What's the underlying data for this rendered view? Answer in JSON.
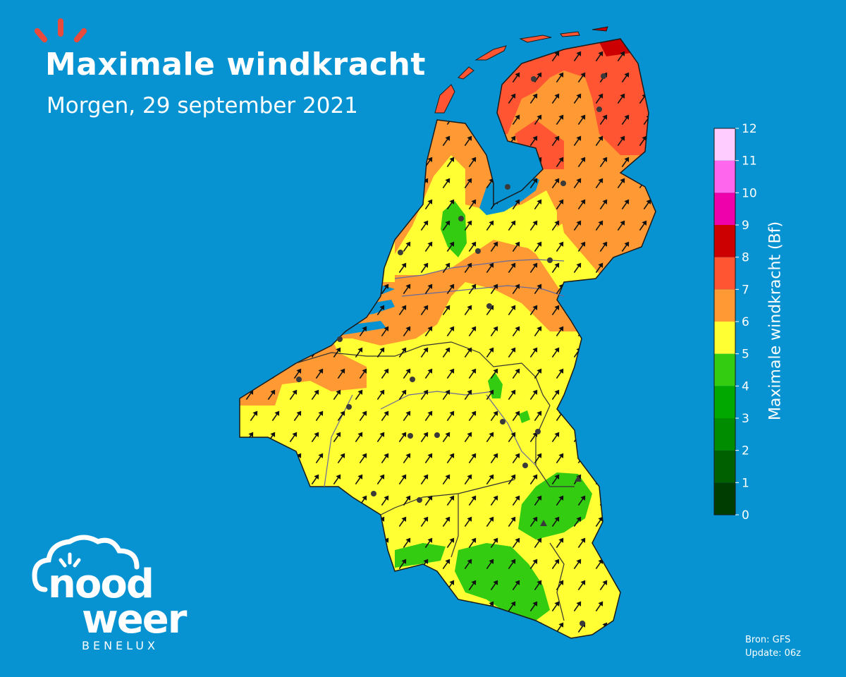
{
  "header": {
    "title": "Maximale windkracht",
    "subtitle": "Morgen, 29 september 2021"
  },
  "source": {
    "line1": "Bron: GFS",
    "line2": "Update: 06z"
  },
  "logo": {
    "word1": "nood",
    "word2": "weer",
    "region": "BENELUX"
  },
  "colorbar": {
    "label": "Maximale windkracht (Bf)",
    "ticks": [
      "0",
      "1",
      "2",
      "3",
      "4",
      "5",
      "6",
      "7",
      "8",
      "9",
      "10",
      "11",
      "12"
    ],
    "colors": [
      "#003d00",
      "#006000",
      "#008c00",
      "#00a800",
      "#33cc11",
      "#ffff33",
      "#ff9933",
      "#ff5533",
      "#cc0000",
      "#ee00aa",
      "#ff66ee",
      "#ffccff",
      "#fff4ff"
    ]
  },
  "map": {
    "land_base_color": "#ffff33",
    "wind_direction": "southwest",
    "zones": {
      "bf4_color": "#33cc11",
      "bf5_color": "#ffff33",
      "bf6_color": "#ff9933",
      "bf7_color": "#ff5533",
      "bf8_color": "#cc0000"
    },
    "cities": 28
  }
}
